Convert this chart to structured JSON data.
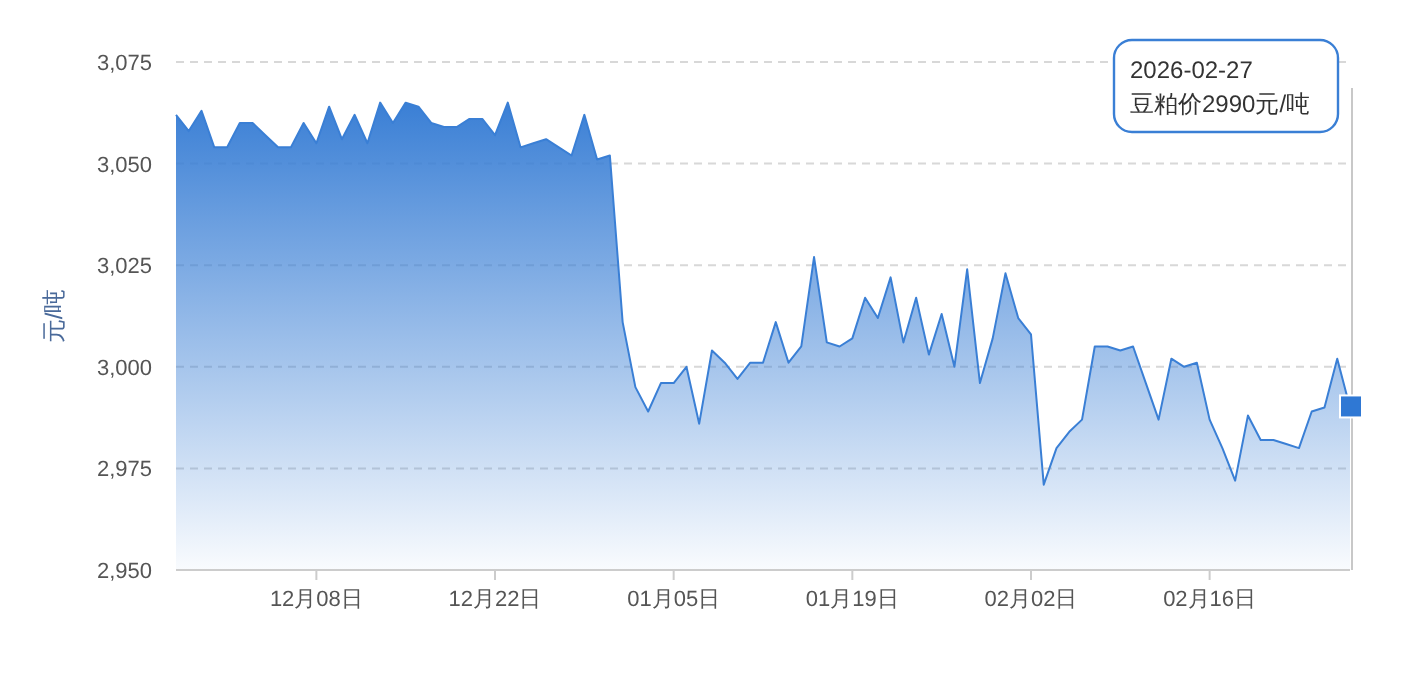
{
  "chart_data": {
    "type": "area",
    "ylabel": "元/吨",
    "xlim": [
      "2025-11-27",
      "2026-02-27"
    ],
    "xticks": [
      {
        "value": "2025-12-08",
        "label": "12月08日"
      },
      {
        "value": "2025-12-22",
        "label": "12月22日"
      },
      {
        "value": "2026-01-05",
        "label": "01月05日"
      },
      {
        "value": "2026-01-19",
        "label": "01月19日"
      },
      {
        "value": "2026-02-02",
        "label": "02月02日"
      },
      {
        "value": "2026-02-16",
        "label": "02月16日"
      }
    ],
    "ylim": [
      2950,
      3075
    ],
    "yticks": [
      {
        "value": 2950,
        "label": "2,950"
      },
      {
        "value": 2975,
        "label": "2,975"
      },
      {
        "value": 3000,
        "label": "3,000"
      },
      {
        "value": 3025,
        "label": "3,025"
      },
      {
        "value": 3050,
        "label": "3,050"
      },
      {
        "value": 3075,
        "label": "3,075"
      }
    ],
    "grid": "y",
    "line_style": "solid",
    "annotations": [
      "2026-02-27\n豆粕价2990元/吨"
    ],
    "x": [
      "2025-11-27",
      "2025-11-28",
      "2025-11-29",
      "2025-11-30",
      "2025-12-01",
      "2025-12-02",
      "2025-12-03",
      "2025-12-04",
      "2025-12-05",
      "2025-12-06",
      "2025-12-07",
      "2025-12-08",
      "2025-12-09",
      "2025-12-10",
      "2025-12-11",
      "2025-12-12",
      "2025-12-13",
      "2025-12-14",
      "2025-12-15",
      "2025-12-16",
      "2025-12-17",
      "2025-12-18",
      "2025-12-19",
      "2025-12-20",
      "2025-12-21",
      "2025-12-22",
      "2025-12-23",
      "2025-12-24",
      "2025-12-25",
      "2025-12-26",
      "2025-12-27",
      "2025-12-28",
      "2025-12-29",
      "2025-12-30",
      "2025-12-31",
      "2026-01-01",
      "2026-01-02",
      "2026-01-03",
      "2026-01-04",
      "2026-01-05",
      "2026-01-06",
      "2026-01-07",
      "2026-01-08",
      "2026-01-09",
      "2026-01-10",
      "2026-01-11",
      "2026-01-12",
      "2026-01-13",
      "2026-01-14",
      "2026-01-15",
      "2026-01-16",
      "2026-01-17",
      "2026-01-18",
      "2026-01-19",
      "2026-01-20",
      "2026-01-21",
      "2026-01-22",
      "2026-01-23",
      "2026-01-24",
      "2026-01-25",
      "2026-01-26",
      "2026-01-27",
      "2026-01-28",
      "2026-01-29",
      "2026-01-30",
      "2026-01-31",
      "2026-02-01",
      "2026-02-02",
      "2026-02-03",
      "2026-02-04",
      "2026-02-05",
      "2026-02-06",
      "2026-02-07",
      "2026-02-08",
      "2026-02-09",
      "2026-02-10",
      "2026-02-11",
      "2026-02-12",
      "2026-02-13",
      "2026-02-14",
      "2026-02-15",
      "2026-02-16",
      "2026-02-17",
      "2026-02-18",
      "2026-02-19",
      "2026-02-20",
      "2026-02-21",
      "2026-02-22",
      "2026-02-23",
      "2026-02-24",
      "2026-02-25",
      "2026-02-26",
      "2026-02-27"
    ],
    "series": [
      {
        "color": "#3a7fd5",
        "values": [
          3062,
          3058,
          3063,
          3054,
          3054,
          3060,
          3060,
          3057,
          3054,
          3054,
          3060,
          3055,
          3064,
          3056,
          3062,
          3055,
          3065,
          3060,
          3065,
          3064,
          3060,
          3059,
          3059,
          3061,
          3061,
          3057,
          3065,
          3054,
          3055,
          3056,
          3054,
          3052,
          3062,
          3051,
          3052,
          3011,
          2995,
          2989,
          2996,
          2996,
          3000,
          2986,
          3004,
          3001,
          2997,
          3001,
          3001,
          3011,
          3001,
          3005,
          3027,
          3006,
          3005,
          3007,
          3017,
          3012,
          3022,
          3006,
          3017,
          3003,
          3013,
          3000,
          3024,
          2996,
          3007,
          3023,
          3012,
          3008,
          2971,
          2980,
          2984,
          2987,
          3005,
          3005,
          3004,
          3005,
          2996,
          2987,
          3002,
          3000,
          3001,
          2987,
          2980,
          2972,
          2988,
          2982,
          2982,
          2981,
          2980,
          2989,
          2990,
          3002,
          2990
        ]
      }
    ]
  }
}
